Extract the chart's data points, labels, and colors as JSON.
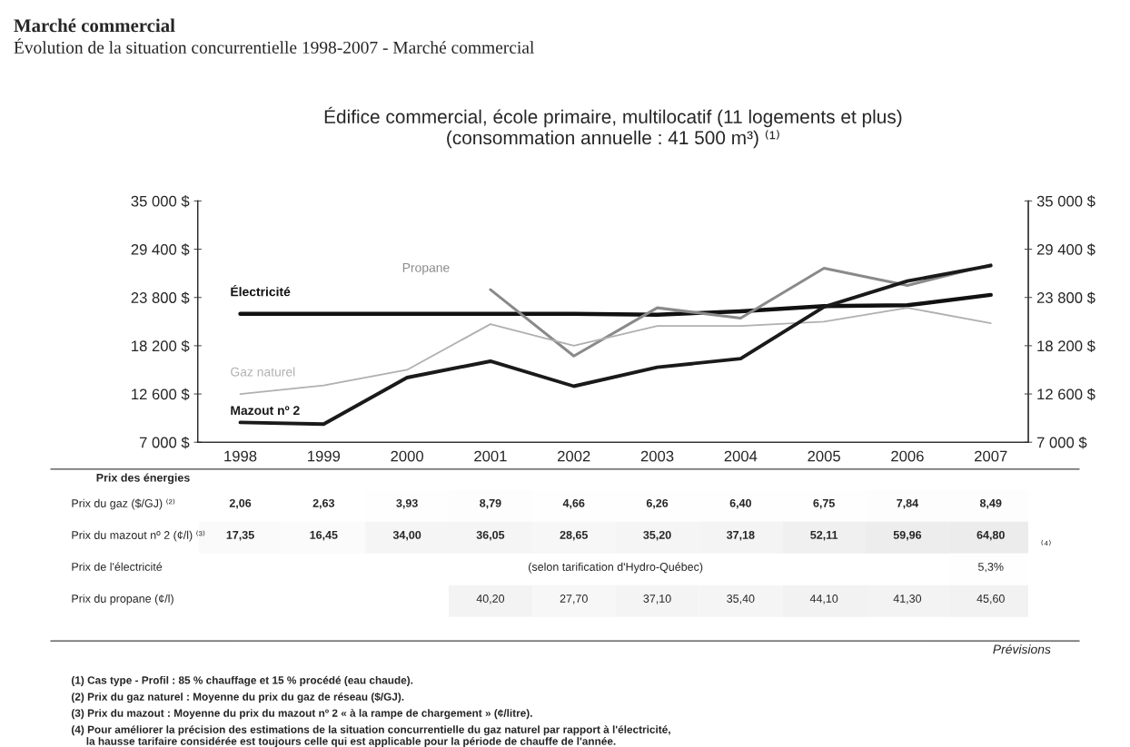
{
  "chart_data": [
    {
      "type": "line",
      "title": "Édifice commercial, école primaire, multilocatif (11 logements et plus)\n(consommation annuelle : 41 500 m³) ⁽¹⁾",
      "subtitle": "Marché commercial",
      "annotations": [
        "Évolution de la situation concurrentielle 1998-2007 - Marché commercial"
      ],
      "categories": [
        "1998",
        "1999",
        "2000",
        "2001",
        "2002",
        "2003",
        "2004",
        "2005",
        "2006",
        "2007"
      ],
      "series": [
        {
          "name": "Électricité",
          "color": "#111111",
          "values": [
            21900,
            21900,
            21900,
            21900,
            21900,
            21800,
            22200,
            22800,
            22900,
            24100
          ]
        },
        {
          "name": "Propane",
          "color": "#8a8a8a",
          "values": [
            null,
            null,
            null,
            24700,
            17000,
            22600,
            21400,
            27200,
            25200,
            27600
          ]
        },
        {
          "name": "Gaz naturel",
          "color": "#b0b0b0",
          "values": [
            12600,
            13600,
            15400,
            20700,
            18200,
            20500,
            20500,
            21000,
            22600,
            20800
          ]
        },
        {
          "name": "Mazout nº 2",
          "color": "#1a1a1a",
          "values": [
            9300,
            9100,
            14500,
            16400,
            13500,
            15700,
            16700,
            22700,
            25700,
            27500
          ]
        }
      ],
      "ylim": [
        7000,
        35000
      ],
      "yticks": [
        {
          "value": 7000,
          "label": "7 000 $"
        },
        {
          "value": 12600,
          "label": "12 600 $"
        },
        {
          "value": 18200,
          "label": "18 200 $"
        },
        {
          "value": 23800,
          "label": "23 800 $"
        },
        {
          "value": 29400,
          "label": "29 400 $"
        },
        {
          "value": 35000,
          "label": "35 000 $"
        }
      ],
      "y2lim": [
        7000,
        35000
      ],
      "y2ticks": [
        {
          "value": 7000,
          "label": "7 000 $"
        },
        {
          "value": 12600,
          "label": "12 600 $"
        },
        {
          "value": 18200,
          "label": "18 200 $"
        },
        {
          "value": 23800,
          "label": "23 800 $"
        },
        {
          "value": 29400,
          "label": "29 400 $"
        },
        {
          "value": 35000,
          "label": "35 000 $"
        }
      ],
      "grid": false,
      "legend": false,
      "marker": "none",
      "line_style": "solid"
    },
    {
      "type": "heatmap",
      "title": "Prix des énergies",
      "categories": [
        null,
        null,
        null,
        null,
        null,
        null,
        null,
        null,
        null,
        null
      ],
      "y_categories": [
        "Prix du gaz ($/GJ) ⁽²⁾",
        "Prix du mazout nº 2 (¢/l) ⁽³⁾",
        "Prix de l'électricité",
        "Prix du propane (¢/l)"
      ],
      "cells": [
        [
          2.06,
          2.63,
          3.93,
          8.79,
          4.66,
          6.26,
          6.4,
          6.75,
          7.84,
          8.49
        ],
        [
          17.35,
          16.45,
          34.0,
          36.05,
          28.65,
          35.2,
          37.18,
          52.11,
          59.96,
          64.8
        ],
        [
          null,
          null,
          null,
          null,
          null,
          null,
          null,
          null,
          null,
          5.3
        ],
        [
          null,
          null,
          null,
          40.2,
          27.7,
          37.1,
          35.4,
          44.1,
          41.3,
          45.6
        ]
      ],
      "cell_labels": [
        [
          "2,06",
          "2,63",
          "3,93",
          "8,79",
          "4,66",
          "6,26",
          "6,40",
          "6,75",
          "7,84",
          "8,49"
        ],
        [
          "17,35",
          "16,45",
          "34,00",
          "36,05",
          "28,65",
          "35,20",
          "37,18",
          "52,11",
          "59,96",
          "64,80"
        ],
        [
          null,
          null,
          null,
          null,
          null,
          null,
          null,
          null,
          null,
          "5,3%"
        ],
        [
          null,
          null,
          null,
          "40,20",
          "27,70",
          "37,10",
          "35,40",
          "44,10",
          "41,30",
          "45,60"
        ]
      ],
      "annotations": [
        "(selon tarification d'Hydro-Québec)",
        "⁽⁴⁾",
        "Prévisions",
        "(1) Cas type - Profil : 85 % chauffage et 15 % procédé (eau chaude).",
        "(2) Prix du gaz naturel : Moyenne du prix du gaz de réseau ($/GJ).",
        "(3) Prix du mazout : Moyenne du prix du mazout nº 2 « à la rampe de chargement » (¢/litre).",
        "(4) Pour améliorer la précision des estimations de la situation concurrentielle du gaz naturel par rapport à l'électricité,\n     la hausse tarifaire considérée est toujours celle qui est applicable pour la période de chauffe de l'année."
      ]
    }
  ]
}
